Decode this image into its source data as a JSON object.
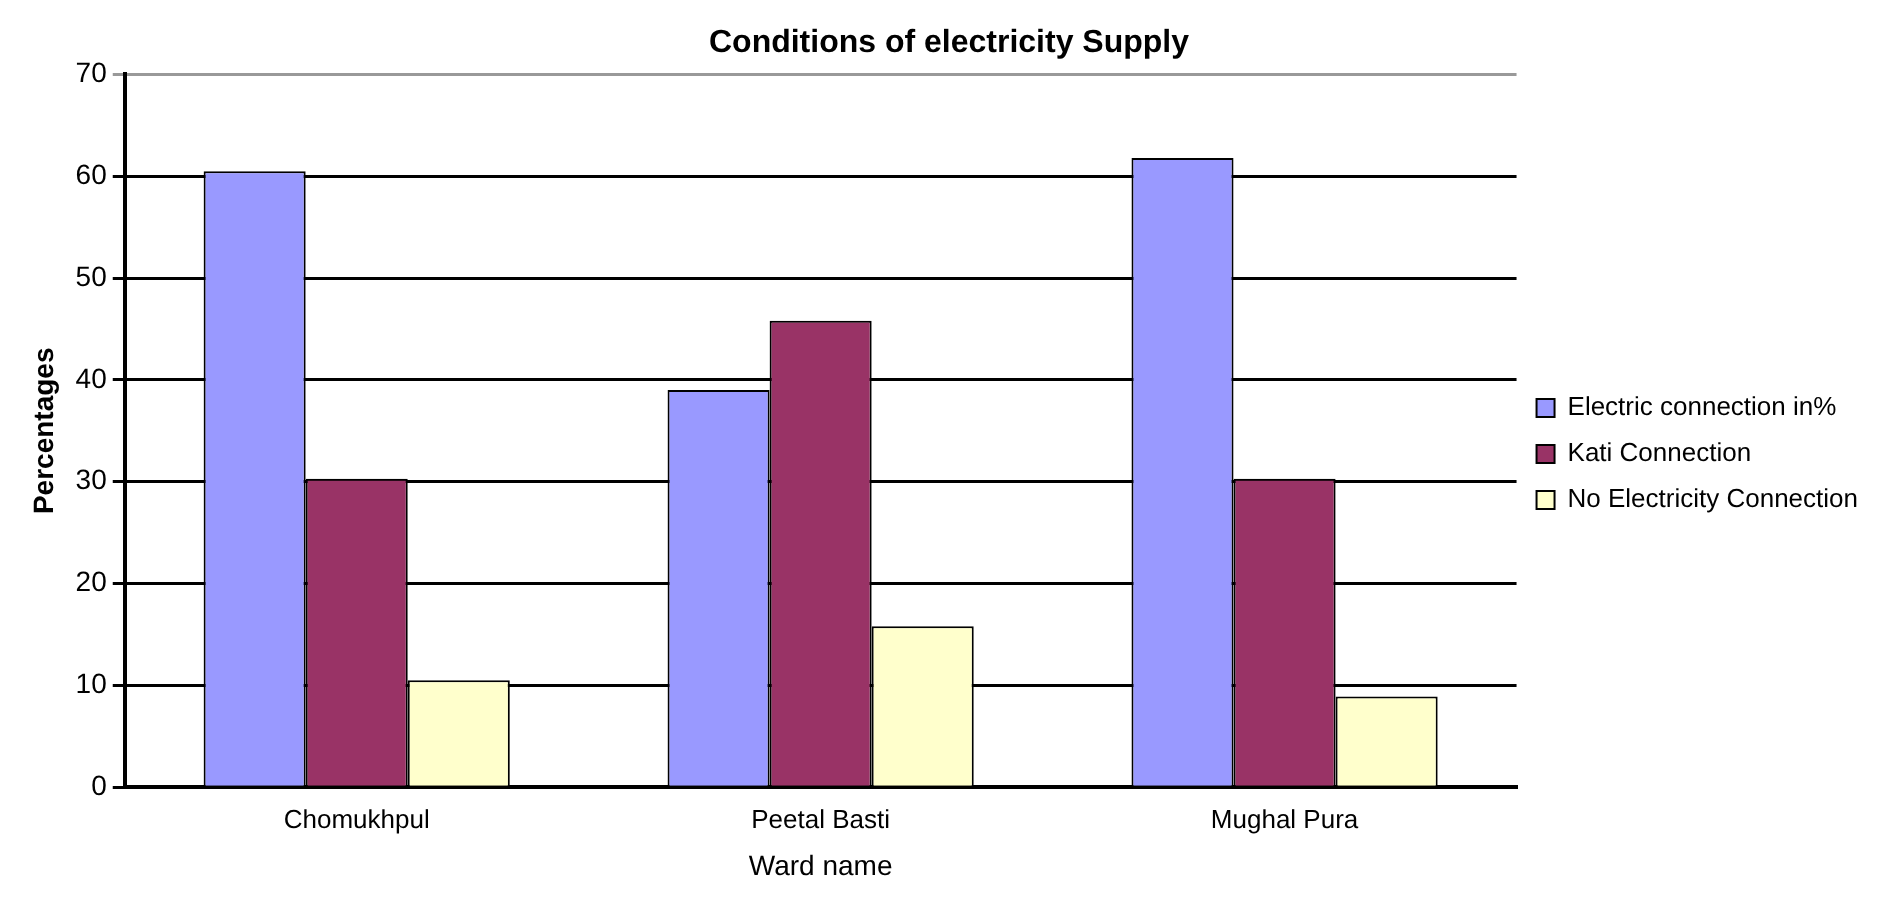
{
  "chart_data": {
    "type": "bar",
    "title": "Conditions of electricity Supply",
    "xlabel": "Ward name",
    "ylabel": "Percentages",
    "categories": [
      "Chomukhpul",
      "Peetal Basti",
      "Mughal Pura"
    ],
    "series": [
      {
        "name": "Electric connection in%",
        "color": "#9999ff",
        "values": [
          60.5,
          39,
          61.8
        ]
      },
      {
        "name": "Kati Connection",
        "color": "#993366",
        "values": [
          30.3,
          45.8,
          30.3
        ]
      },
      {
        "name": "No Electricity Connection",
        "color": "#ffffcc",
        "values": [
          10.5,
          15.8,
          8.9
        ]
      }
    ],
    "ylim": [
      0,
      70
    ],
    "yticks": [
      0,
      10,
      20,
      30,
      40,
      50,
      60,
      70
    ],
    "grid": "y",
    "legend": "right"
  }
}
